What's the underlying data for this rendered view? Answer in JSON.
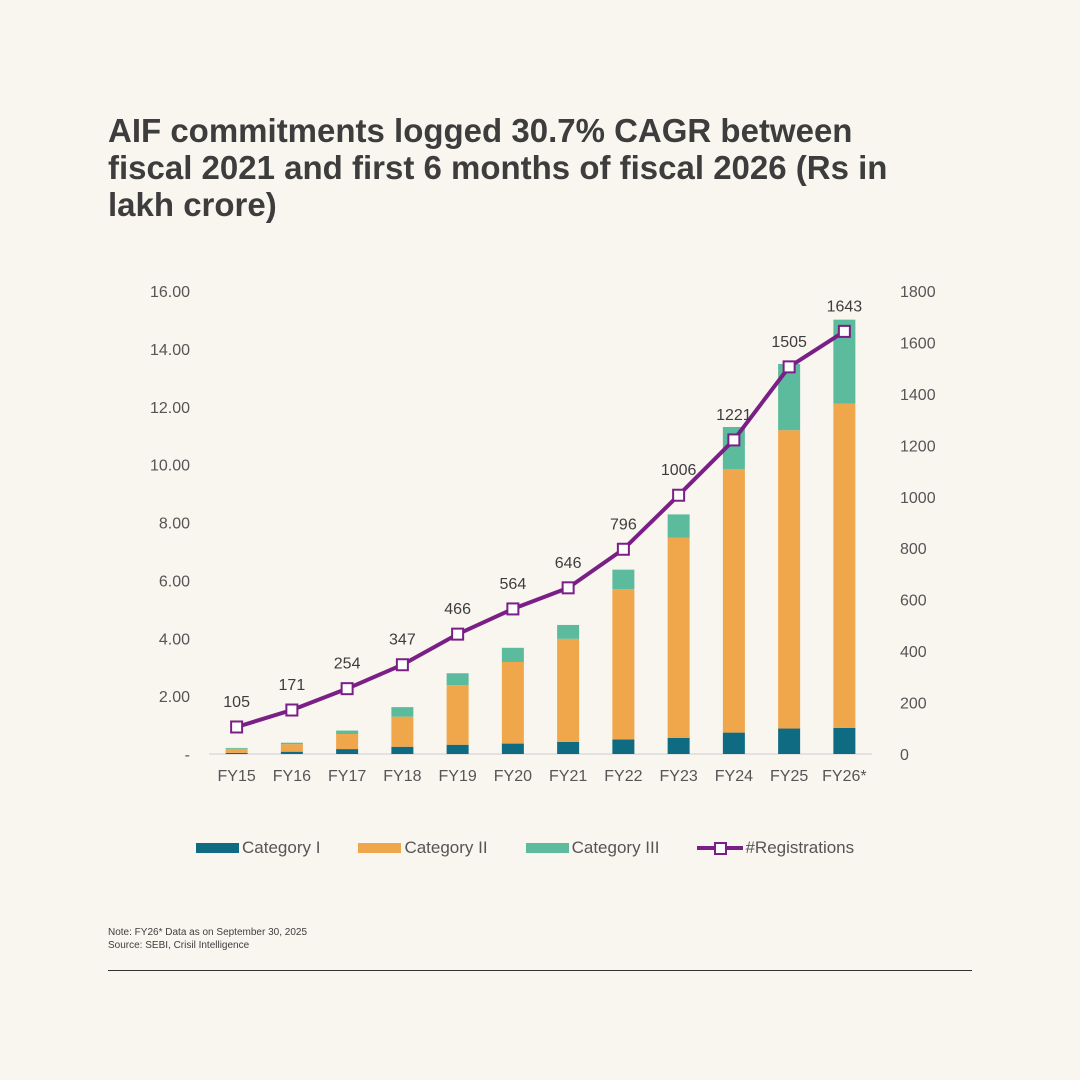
{
  "title": "AIF commitments logged 30.7% CAGR between fiscal 2021 and first 6 months of fiscal 2026 (Rs in lakh crore)",
  "chart_data": {
    "type": "bar",
    "stacked": true,
    "categories": [
      "FY15",
      "FY16",
      "FY17",
      "FY18",
      "FY19",
      "FY20",
      "FY21",
      "FY22",
      "FY23",
      "FY24",
      "FY25",
      "FY26*"
    ],
    "series": [
      {
        "name": "Category I",
        "color": "#0e6b82",
        "values": [
          0.04,
          0.08,
          0.17,
          0.25,
          0.32,
          0.36,
          0.42,
          0.5,
          0.56,
          0.74,
          0.88,
          0.9
        ]
      },
      {
        "name": "Category II",
        "color": "#f0a64b",
        "values": [
          0.14,
          0.26,
          0.52,
          1.04,
          2.06,
          2.82,
          3.56,
          5.2,
          6.92,
          9.11,
          10.31,
          11.21
        ]
      },
      {
        "name": "Category III",
        "color": "#5bbb9c",
        "values": [
          0.03,
          0.05,
          0.12,
          0.33,
          0.41,
          0.49,
          0.48,
          0.67,
          0.8,
          1.45,
          2.29,
          2.9
        ]
      }
    ],
    "line_series": {
      "name": "#Registrations",
      "color": "#7a1f86",
      "axis": "right",
      "values": [
        105,
        171,
        254,
        347,
        466,
        564,
        646,
        796,
        1006,
        1221,
        1505,
        1643
      ]
    },
    "left_axis": {
      "range": [
        0,
        16
      ],
      "ticks": [
        "-",
        "2.00",
        "4.00",
        "6.00",
        "8.00",
        "10.00",
        "12.00",
        "14.00",
        "16.00"
      ]
    },
    "right_axis": {
      "range": [
        0,
        1800
      ],
      "ticks": [
        "0",
        "200",
        "400",
        "600",
        "800",
        "1000",
        "1200",
        "1400",
        "1600",
        "1800"
      ]
    },
    "legend": [
      "Category I",
      "Category II",
      "Category III",
      "#Registrations"
    ],
    "legend_position": "bottom"
  },
  "notes": {
    "line1": "Note: FY26* Data as on September 30, 2025",
    "line2": "Source: SEBI, Crisil Intelligence"
  }
}
